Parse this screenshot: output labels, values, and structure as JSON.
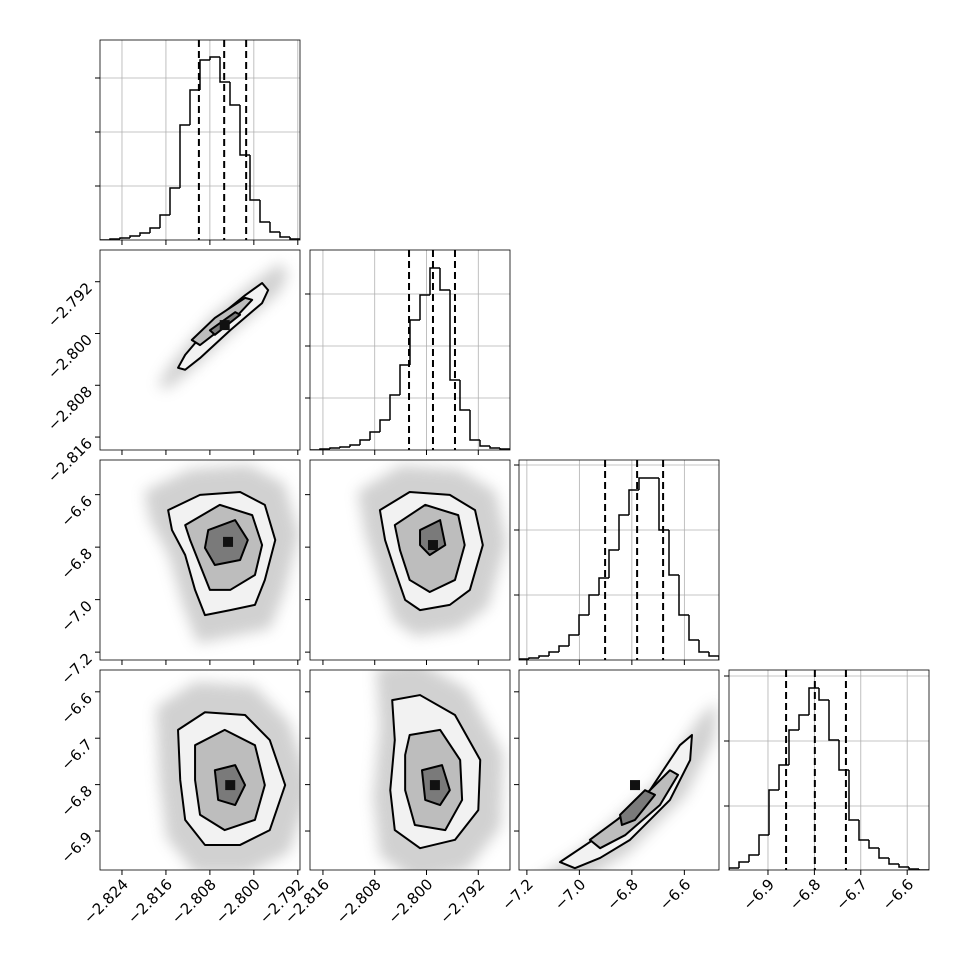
{
  "chart_data": {
    "type": "corner",
    "grid": true,
    "params": [
      {
        "lim": [
          -2.828,
          -2.7916
        ],
        "ticks": [
          {
            "value": -2.824,
            "label": "−2.824"
          },
          {
            "value": -2.816,
            "label": "−2.816"
          },
          {
            "value": -2.808,
            "label": "−2.808"
          },
          {
            "value": -2.8,
            "label": "−2.800"
          },
          {
            "value": -2.792,
            "label": "−2.792"
          }
        ],
        "quantiles": [
          -2.81,
          -2.8054,
          -2.8014
        ],
        "hist": {
          "bins": [
            -2.828,
            -2.82618,
            -2.82436,
            -2.82254,
            -2.82072,
            -2.8189,
            -2.81708,
            -2.81526,
            -2.81344,
            -2.81162,
            -2.8098,
            -2.80798,
            -2.80616,
            -2.80434,
            -2.80252,
            -2.8007,
            -2.79888,
            -2.79706,
            -2.79524,
            -2.79342,
            -2.7916
          ],
          "counts": [
            0,
            1,
            2,
            4,
            7,
            12,
            25,
            52,
            115,
            150,
            180,
            183,
            158,
            135,
            85,
            40,
            18,
            8,
            3,
            1
          ],
          "ylim": [
            0,
            200
          ],
          "yticks": [
            54,
            108,
            162
          ]
        },
        "pairs": []
      },
      {
        "lim": [
          -2.818,
          -2.7871
        ],
        "ticks": [
          {
            "value": -2.816,
            "label": "−2.816"
          },
          {
            "value": -2.808,
            "label": "−2.808"
          },
          {
            "value": -2.8,
            "label": "−2.800"
          },
          {
            "value": -2.792,
            "label": "−2.792"
          }
        ],
        "quantiles": [
          -2.8027,
          -2.799,
          -2.7956
        ],
        "hist": {
          "bins": [
            -2.818,
            -2.816455,
            -2.81491,
            -2.813365,
            -2.81182,
            -2.810275,
            -2.80873,
            -2.807185,
            -2.80564,
            -2.804095,
            -2.80255,
            -2.801005,
            -2.79946,
            -2.797915,
            -2.79637,
            -2.794825,
            -2.79328,
            -2.791735,
            -2.79019,
            -2.788645,
            -2.7871
          ],
          "counts": [
            0,
            1,
            2,
            3,
            5,
            10,
            18,
            30,
            55,
            85,
            130,
            155,
            182,
            160,
            70,
            40,
            10,
            4,
            2,
            1
          ],
          "ylim": [
            0,
            200
          ],
          "yticks": [
            52,
            104,
            156
          ]
        },
        "pairs": [
          {
            "contours": [
              {
                "x": [
                  -2.8138,
                  -2.8125,
                  -2.8071,
                  -2.8016,
                  -2.7985,
                  -2.7974,
                  -2.7985,
                  -2.8043,
                  -2.8098,
                  -2.8125
                ],
                "y": [
                  -2.8053,
                  -2.8033,
                  -2.7979,
                  -2.7941,
                  -2.7922,
                  -2.7933,
                  -2.7953,
                  -2.7995,
                  -2.8038,
                  -2.8056
                ]
              },
              {
                "x": [
                  -2.8113,
                  -2.8071,
                  -2.8016,
                  -2.8003,
                  -2.8034,
                  -2.8098
                ],
                "y": [
                  -2.801,
                  -2.7976,
                  -2.7945,
                  -2.7948,
                  -2.7976,
                  -2.8018
                ]
              },
              {
                "x": [
                  -2.808,
                  -2.8034,
                  -2.8025,
                  -2.8071
                ],
                "y": [
                  -2.7995,
                  -2.7967,
                  -2.7971,
                  -2.8002
                ]
              }
            ],
            "peak": {
              "x": -2.8053,
              "y": -2.7987
            }
          }
        ]
      },
      {
        "lim": [
          -7.23,
          -6.468
        ],
        "ticks": [
          {
            "value": -7.2,
            "label": "−7.2"
          },
          {
            "value": -7.0,
            "label": "−7.0"
          },
          {
            "value": -6.8,
            "label": "−6.8"
          },
          {
            "value": -6.6,
            "label": "−6.6"
          }
        ],
        "quantiles": [
          -6.902,
          -6.78,
          -6.681
        ],
        "hist": {
          "bins": [
            -7.23,
            -7.1919,
            -7.1538,
            -7.1157,
            -7.0776,
            -7.0395,
            -7.0014,
            -6.9633,
            -6.9252,
            -6.8871,
            -6.849,
            -6.8109,
            -6.7728,
            -6.7347,
            -6.6966,
            -6.6585,
            -6.6204,
            -6.5823,
            -6.5442,
            -6.5061,
            -6.468
          ],
          "counts": [
            1,
            2,
            4,
            8,
            14,
            25,
            45,
            65,
            82,
            110,
            145,
            170,
            182,
            182,
            130,
            85,
            45,
            20,
            8,
            4
          ],
          "ylim": [
            0,
            200
          ],
          "yticks": [
            65,
            130,
            195
          ]
        },
        "pairs": [
          {
            "contours": [
              {
                "x": [
                  -2.8156,
                  -2.8098,
                  -2.8025,
                  -2.798,
                  -2.7961,
                  -2.798,
                  -2.7998,
                  -2.8043,
                  -2.8089,
                  -2.8107,
                  -2.8125,
                  -2.8149
                ],
                "y": [
                  -6.659,
                  -6.601,
                  -6.59,
                  -6.639,
                  -6.773,
                  -6.925,
                  -7.02,
                  -7.04,
                  -7.059,
                  -6.963,
                  -6.83,
                  -6.735
                ]
              },
              {
                "x": [
                  -2.8125,
                  -2.8062,
                  -2.8003,
                  -2.7985,
                  -2.7998,
                  -2.8043,
                  -2.808,
                  -2.8098,
                  -2.8116
                ],
                "y": [
                  -6.716,
                  -6.639,
                  -6.678,
                  -6.792,
                  -6.906,
                  -6.963,
                  -6.963,
                  -6.868,
                  -6.773
                ]
              },
              {
                "x": [
                  -2.8083,
                  -2.8034,
                  -2.8011,
                  -2.8025,
                  -2.8071,
                  -2.8089
                ],
                "y": [
                  -6.735,
                  -6.697,
                  -6.773,
                  -6.849,
                  -6.868,
                  -6.803
                ]
              }
            ],
            "peak": {
              "x": -2.8047,
              "y": -6.78
            }
          },
          {
            "contours": [
              {
                "x": [
                  -2.8072,
                  -2.8026,
                  -2.7964,
                  -2.7925,
                  -2.7913,
                  -2.7933,
                  -2.7964,
                  -2.801,
                  -2.8033,
                  -2.8049,
                  -2.8064
                ],
                "y": [
                  -6.659,
                  -6.59,
                  -6.601,
                  -6.659,
                  -6.792,
                  -6.963,
                  -7.02,
                  -7.04,
                  -7.001,
                  -6.887,
                  -6.773
                ]
              },
              {
                "x": [
                  -2.8049,
                  -2.8002,
                  -2.7951,
                  -2.7941,
                  -2.7956,
                  -2.7995,
                  -2.8026,
                  -2.8041
                ],
                "y": [
                  -6.716,
                  -6.639,
                  -6.678,
                  -6.792,
                  -6.925,
                  -6.971,
                  -6.925,
                  -6.811
                ]
              },
              {
                "x": [
                  -2.801,
                  -2.7979,
                  -2.7971,
                  -2.7995,
                  -2.801
                ],
                "y": [
                  -6.735,
                  -6.697,
                  -6.792,
                  -6.83,
                  -6.792
                ]
              }
            ],
            "peak": {
              "x": -2.799,
              "y": -6.792
            }
          }
        ]
      },
      {
        "lim": [
          -6.984,
          -6.553
        ],
        "ticks": [
          {
            "value": -6.9,
            "label": "−6.9"
          },
          {
            "value": -6.8,
            "label": "−6.8"
          },
          {
            "value": -6.7,
            "label": "−6.7"
          },
          {
            "value": -6.6,
            "label": "−6.6"
          }
        ],
        "quantiles": [
          -6.861,
          -6.799,
          -6.732
        ],
        "hist": {
          "bins": [
            -6.984,
            -6.96245,
            -6.9409,
            -6.91935,
            -6.8978,
            -6.87625,
            -6.8547,
            -6.83315,
            -6.8116,
            -6.79005,
            -6.7685,
            -6.74695,
            -6.7254,
            -6.70385,
            -6.6823,
            -6.66075,
            -6.6392,
            -6.61765,
            -6.5961,
            -6.57455,
            -6.553
          ],
          "counts": [
            2,
            8,
            15,
            35,
            80,
            105,
            140,
            155,
            182,
            170,
            130,
            100,
            50,
            30,
            22,
            12,
            6,
            3,
            1,
            0
          ],
          "ylim": [
            0,
            200
          ],
          "yticks": [
            64,
            129,
            194
          ]
        },
        "pairs": [
          {
            "contours": [
              {
                "x": [
                  -2.8138,
                  -2.8089,
                  -2.8016,
                  -2.7971,
                  -2.7943,
                  -2.7971,
                  -2.8025,
                  -2.8089,
                  -2.8125,
                  -2.8134
                ],
                "y": [
                  -6.682,
                  -6.644,
                  -6.65,
                  -6.704,
                  -6.801,
                  -6.898,
                  -6.93,
                  -6.93,
                  -6.876,
                  -6.79
                ]
              },
              {
                "x": [
                  -2.8107,
                  -2.8053,
                  -2.7998,
                  -2.798,
                  -2.7998,
                  -2.8053,
                  -2.8098,
                  -2.8107
                ],
                "y": [
                  -6.715,
                  -6.682,
                  -6.715,
                  -6.801,
                  -6.876,
                  -6.898,
                  -6.865,
                  -6.79
                ]
              },
              {
                "x": [
                  -2.8071,
                  -2.8034,
                  -2.8016,
                  -2.8034,
                  -2.8065
                ],
                "y": [
                  -6.769,
                  -6.758,
                  -6.801,
                  -6.844,
                  -6.833
                ]
              }
            ],
            "peak": {
              "x": -2.8043,
              "y": -6.801
            }
          },
          {
            "contours": [
              {
                "x": [
                  -2.8053,
                  -2.801,
                  -2.7956,
                  -2.7917,
                  -2.792,
                  -2.7956,
                  -2.801,
                  -2.8049,
                  -2.8056,
                  -2.8049
                ],
                "y": [
                  -6.618,
                  -6.607,
                  -6.65,
                  -6.747,
                  -6.855,
                  -6.919,
                  -6.937,
                  -6.898,
                  -6.812,
                  -6.704
                ]
              },
              {
                "x": [
                  -2.8026,
                  -2.7979,
                  -2.7948,
                  -2.7945,
                  -2.7971,
                  -2.8018,
                  -2.8033,
                  -2.8033
                ],
                "y": [
                  -6.693,
                  -6.682,
                  -6.747,
                  -6.833,
                  -6.898,
                  -6.887,
                  -6.812,
                  -6.736
                ]
              },
              {
                "x": [
                  -2.8007,
                  -2.7976,
                  -2.7964,
                  -2.7979,
                  -2.8002
                ],
                "y": [
                  -6.769,
                  -6.758,
                  -6.812,
                  -6.844,
                  -6.833
                ]
              }
            ],
            "peak": {
              "x": -2.7987,
              "y": -6.801
            }
          },
          {
            "contours": [
              {
                "x": [
                  -7.074,
                  -6.921,
                  -6.731,
                  -6.617,
                  -6.571,
                  -6.578,
                  -6.655,
                  -6.807,
                  -6.921,
                  -7.017
                ],
                "y": [
                  -6.967,
                  -6.909,
                  -6.812,
                  -6.715,
                  -6.693,
                  -6.747,
                  -6.833,
                  -6.919,
                  -6.958,
                  -6.98
                ]
              },
              {
                "x": [
                  -6.96,
                  -6.807,
                  -6.655,
                  -6.624,
                  -6.693,
                  -6.826,
                  -6.921
                ],
                "y": [
                  -6.919,
                  -6.855,
                  -6.769,
                  -6.779,
                  -6.844,
                  -6.909,
                  -6.937
                ]
              },
              {
                "x": [
                  -6.845,
                  -6.75,
                  -6.712,
                  -6.788,
                  -6.838
                ],
                "y": [
                  -6.865,
                  -6.812,
                  -6.822,
                  -6.876,
                  -6.887
                ]
              }
            ],
            "peak": {
              "x": -6.788,
              "y": -6.801
            }
          }
        ]
      }
    ]
  }
}
